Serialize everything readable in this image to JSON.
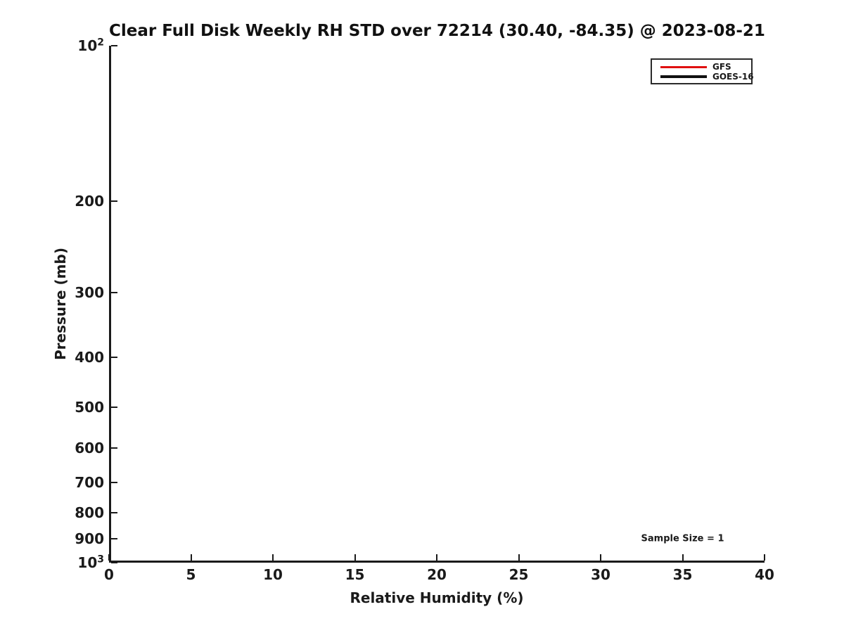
{
  "title": "Clear Full Disk Weekly RH STD over 72214 (30.40, -84.35) @ 2023-08-21",
  "axes": {
    "x_label": "Relative Humidity (%)",
    "y_label": "Pressure (mb)"
  },
  "legend": {
    "items": [
      {
        "label": "GFS",
        "color": "#e01010"
      },
      {
        "label": "GOES-16",
        "color": "#111111"
      }
    ]
  },
  "annotation": {
    "text": "Sample Size = 1"
  },
  "chart_data": {
    "type": "line",
    "title": "Clear Full Disk Weekly RH STD over 72214 (30.40, -84.35) @ 2023-08-21",
    "xlabel": "Relative Humidity (%)",
    "ylabel": "Pressure (mb)",
    "xlim": [
      0,
      40
    ],
    "ylim": [
      100,
      1000
    ],
    "x_scale": "linear",
    "y_scale": "log",
    "y_axis_direction": "increasing-downward",
    "grid": false,
    "legend_position": "upper right",
    "x_ticks": [
      {
        "v": 0,
        "label": "0"
      },
      {
        "v": 5,
        "label": "5"
      },
      {
        "v": 10,
        "label": "10"
      },
      {
        "v": 15,
        "label": "15"
      },
      {
        "v": 20,
        "label": "20"
      },
      {
        "v": 25,
        "label": "25"
      },
      {
        "v": 30,
        "label": "30"
      },
      {
        "v": 35,
        "label": "35"
      },
      {
        "v": 40,
        "label": "40"
      }
    ],
    "y_ticks": [
      {
        "v": 100,
        "label": "10^2"
      },
      {
        "v": 200,
        "label": "200"
      },
      {
        "v": 300,
        "label": "300"
      },
      {
        "v": 400,
        "label": "400"
      },
      {
        "v": 500,
        "label": "500"
      },
      {
        "v": 600,
        "label": "600"
      },
      {
        "v": 700,
        "label": "700"
      },
      {
        "v": 800,
        "label": "800"
      },
      {
        "v": 900,
        "label": "900"
      },
      {
        "v": 1000,
        "label": "10^3"
      }
    ],
    "series": [
      {
        "name": "GFS",
        "color": "#e01010",
        "points": []
      },
      {
        "name": "GOES-16",
        "color": "#111111",
        "points": []
      }
    ],
    "annotations": [
      {
        "text": "Sample Size = 1",
        "x": 35,
        "y": 900
      }
    ]
  }
}
